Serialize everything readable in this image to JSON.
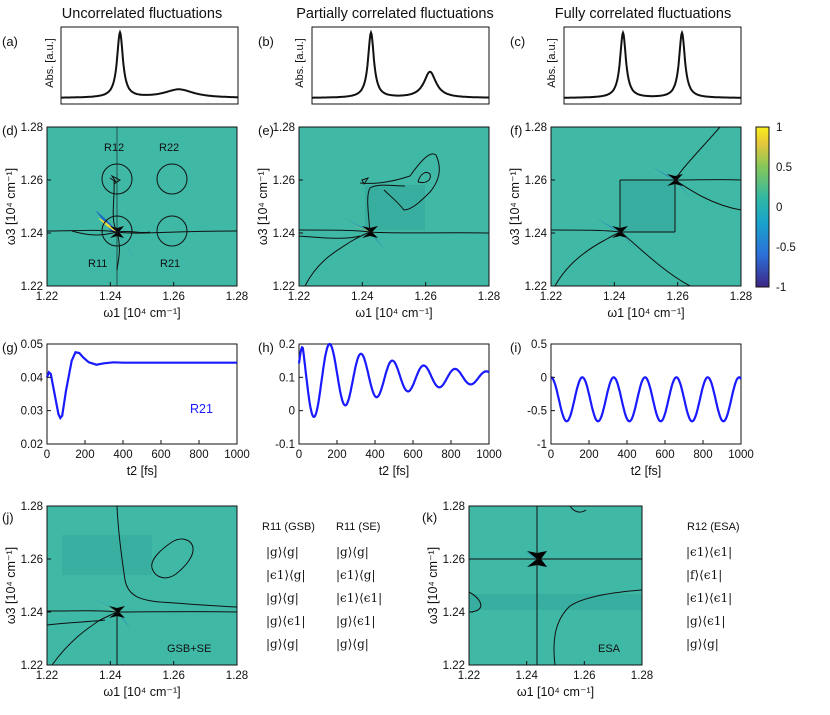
{
  "column_titles": [
    "Uncorrelated fluctuations",
    "Partially correlated fluctuations",
    "Fully correlated fluctuations"
  ],
  "panel_labels": [
    "(a)",
    "(b)",
    "(c)",
    "(d)",
    "(e)",
    "(f)",
    "(g)",
    "(h)",
    "(i)",
    "(j)",
    "(k)"
  ],
  "abs_ylabel": "Abs. [a.u.]",
  "map_xlabel": "ω1 [10⁴ cm⁻¹]",
  "map_ylabel": "ω3 [10⁴ cm⁻¹]",
  "map_ticks": [
    "1.22",
    "1.24",
    "1.26",
    "1.28"
  ],
  "t2_xlabel": "t2 [fs]",
  "t2_ticks": [
    "0",
    "200",
    "400",
    "600",
    "800",
    "1000"
  ],
  "region_labels": [
    "R12",
    "R22",
    "R11",
    "R21"
  ],
  "series_label": "R21",
  "colorbar_ticks": [
    "1",
    "0.5",
    "0",
    "-0.5",
    "-1"
  ],
  "j_caption": "GSB+SE",
  "k_caption": "ESA",
  "pathway_tables": {
    "gsb": {
      "header": "R11 (GSB)",
      "rows": [
        "|g⟩⟨g|",
        "|ϵ1⟩⟨g|",
        "|g⟩⟨g|",
        "|g⟩⟨ϵ1|",
        "|g⟩⟨g|"
      ]
    },
    "se": {
      "header": "R11 (SE)",
      "rows": [
        "|g⟩⟨g|",
        "|ϵ1⟩⟨g|",
        "|ϵ1⟩⟨ϵ1|",
        "|g⟩⟨ϵ1|",
        "|g⟩⟨g|"
      ]
    },
    "esa": {
      "header": "R12 (ESA)",
      "rows": [
        "|ϵ1⟩⟨ϵ1|",
        "|f⟩⟨ϵ1|",
        "|ϵ1⟩⟨ϵ1|",
        "|g⟩⟨ϵ1|",
        "|g⟩⟨g|"
      ]
    }
  },
  "chart_data": [
    {
      "panel": "(a)",
      "type": "line",
      "title": "Uncorrelated fluctuations",
      "ylabel": "Abs. [a.u.]",
      "peaks": [
        {
          "center": 1.24,
          "height": 1.0,
          "width": 0.0012
        },
        {
          "center": 1.26,
          "height": 0.13,
          "width": 0.006
        }
      ]
    },
    {
      "panel": "(b)",
      "type": "line",
      "title": "Partially correlated fluctuations",
      "ylabel": "Abs. [a.u.]",
      "peaks": [
        {
          "center": 1.24,
          "height": 1.0,
          "width": 0.0012
        },
        {
          "center": 1.26,
          "height": 0.4,
          "width": 0.0025
        }
      ]
    },
    {
      "panel": "(c)",
      "type": "line",
      "title": "Fully correlated fluctuations",
      "ylabel": "Abs. [a.u.]",
      "peaks": [
        {
          "center": 1.24,
          "height": 1.0,
          "width": 0.0012
        },
        {
          "center": 1.26,
          "height": 1.0,
          "width": 0.0012
        }
      ]
    },
    {
      "panel": "(d)",
      "type": "heatmap",
      "xlim": [
        1.22,
        1.28
      ],
      "ylim": [
        1.22,
        1.28
      ],
      "xlabel": "ω1 [10⁴ cm⁻¹]",
      "ylabel": "ω3 [10⁴ cm⁻¹]",
      "regions": [
        "R12",
        "R22",
        "R11",
        "R21"
      ]
    },
    {
      "panel": "(e)",
      "type": "heatmap",
      "xlim": [
        1.22,
        1.28
      ],
      "ylim": [
        1.22,
        1.28
      ]
    },
    {
      "panel": "(f)",
      "type": "heatmap",
      "xlim": [
        1.22,
        1.28
      ],
      "ylim": [
        1.22,
        1.28
      ],
      "colorbar": {
        "range": [
          -1,
          1
        ],
        "ticks": [
          1,
          0.5,
          0,
          -0.5,
          -1
        ]
      }
    },
    {
      "panel": "(g)",
      "type": "line",
      "xlabel": "t2 [fs]",
      "xlim": [
        0,
        1000
      ],
      "ylim": [
        0.02,
        0.05
      ],
      "yticks": [
        0.02,
        0.03,
        0.04,
        0.05
      ],
      "series": [
        {
          "name": "R21",
          "color": "#1a1aff",
          "x": [
            0,
            10,
            20,
            40,
            60,
            70,
            80,
            100,
            130,
            150,
            170,
            190,
            220,
            260,
            300,
            350,
            400,
            500,
            600,
            700,
            800,
            900,
            1000
          ],
          "y": [
            0.04,
            0.0415,
            0.041,
            0.035,
            0.029,
            0.0278,
            0.0285,
            0.036,
            0.045,
            0.0475,
            0.0473,
            0.046,
            0.0445,
            0.0438,
            0.0442,
            0.0445,
            0.0444,
            0.0444,
            0.0444,
            0.0444,
            0.0444,
            0.0444,
            0.0444
          ]
        }
      ]
    },
    {
      "panel": "(h)",
      "type": "line",
      "xlabel": "t2 [fs]",
      "xlim": [
        0,
        1000
      ],
      "ylim": [
        -0.1,
        0.2
      ],
      "yticks": [
        -0.1,
        0,
        0.1,
        0.2
      ],
      "series": [
        {
          "name": "R21",
          "color": "#1a1aff",
          "model": "damped-cosine",
          "offset": 0.1,
          "amplitude": 0.14,
          "period_fs": 165,
          "decay_fs": 480,
          "phase_min_fs": 80
        }
      ]
    },
    {
      "panel": "(i)",
      "type": "line",
      "xlabel": "t2 [fs]",
      "xlim": [
        0,
        1000
      ],
      "ylim": [
        -1,
        0.5
      ],
      "yticks": [
        -1,
        -0.5,
        0,
        0.5
      ],
      "series": [
        {
          "name": "R21",
          "color": "#1a1aff",
          "model": "cosine",
          "offset": -0.33,
          "amplitude": 0.33,
          "period_fs": 165
        }
      ]
    },
    {
      "panel": "(j)",
      "type": "heatmap",
      "xlim": [
        1.22,
        1.28
      ],
      "ylim": [
        1.22,
        1.28
      ],
      "caption": "GSB+SE"
    },
    {
      "panel": "(k)",
      "type": "heatmap",
      "xlim": [
        1.22,
        1.28
      ],
      "ylim": [
        1.22,
        1.28
      ],
      "caption": "ESA"
    }
  ],
  "colors": {
    "map_background": "#3fb8a6",
    "map_dark": "#2f9f97",
    "cold": "#1e64c8",
    "warm": "#e6dc3c",
    "trace": "#1a1aff"
  }
}
